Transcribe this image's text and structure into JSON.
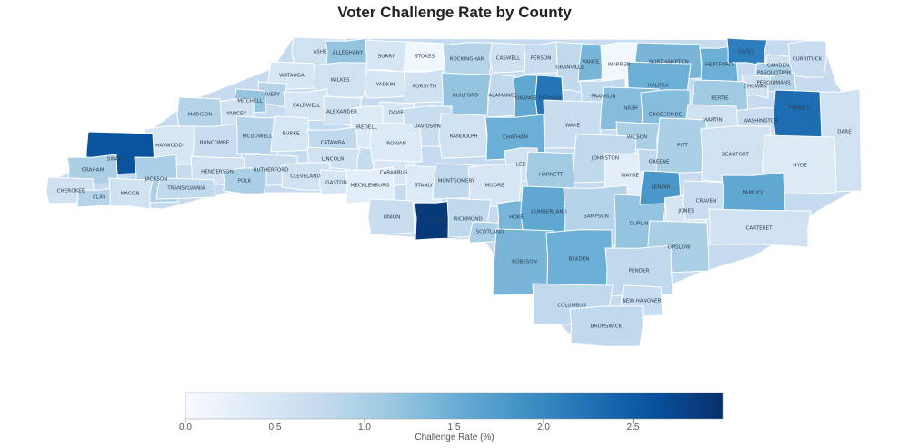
{
  "title": "Voter Challenge Rate by County",
  "colorbar": {
    "title": "Challenge Rate (%)",
    "min": 0,
    "max": 3,
    "ticks": [
      "0.0",
      "0.5",
      "1.0",
      "1.5",
      "2.0",
      "2.5"
    ],
    "tick_values": [
      0,
      0.5,
      1.0,
      1.5,
      2.0,
      2.5
    ],
    "colorscale": [
      "#f7fbff",
      "#deebf7",
      "#c6dbef",
      "#9ecae1",
      "#6baed6",
      "#4292c6",
      "#2171b5",
      "#08519c",
      "#08306b"
    ]
  },
  "counties": [
    {
      "name": "ASHE",
      "value": 0.6
    },
    {
      "name": "ALLEGHANY",
      "value": 1.2
    },
    {
      "name": "SURRY",
      "value": 0.5
    },
    {
      "name": "STOKES",
      "value": 0.1
    },
    {
      "name": "ROCKINGHAM",
      "value": 0.9
    },
    {
      "name": "CASWELL",
      "value": 0.6
    },
    {
      "name": "PERSON",
      "value": 0.7
    },
    {
      "name": "GRANVILLE",
      "value": 0.8
    },
    {
      "name": "VANCE",
      "value": 1.4
    },
    {
      "name": "WARREN",
      "value": 0.1
    },
    {
      "name": "NORTHAMPTON",
      "value": 1.4
    },
    {
      "name": "HERTFORD",
      "value": 1.5
    },
    {
      "name": "GATES",
      "value": 2.1
    },
    {
      "name": "CAMDEN",
      "value": 0.6
    },
    {
      "name": "CURRITUCK",
      "value": 0.7
    },
    {
      "name": "PASQUOTANK",
      "value": 1.0
    },
    {
      "name": "PERQUIMANS",
      "value": 0.9
    },
    {
      "name": "CHOWAN",
      "value": 0.6
    },
    {
      "name": "WATAUGA",
      "value": 0.5
    },
    {
      "name": "WILKES",
      "value": 0.6
    },
    {
      "name": "YADKIN",
      "value": 0.5
    },
    {
      "name": "FORSYTH",
      "value": 0.6
    },
    {
      "name": "GUILFORD",
      "value": 1.2
    },
    {
      "name": "ALAMANCE",
      "value": 0.8
    },
    {
      "name": "ORANGE",
      "value": 1.6
    },
    {
      "name": "DURHAM",
      "value": 2.2
    },
    {
      "name": "FRANKLIN",
      "value": 0.8
    },
    {
      "name": "HALIFAX",
      "value": 1.5
    },
    {
      "name": "BERTIE",
      "value": 1.1
    },
    {
      "name": "WASHINGTON",
      "value": 0.7
    },
    {
      "name": "TYRRELL",
      "value": 2.3
    },
    {
      "name": "DARE",
      "value": 0.6
    },
    {
      "name": "AVERY",
      "value": 0.9
    },
    {
      "name": "MITCHELL",
      "value": 1.2
    },
    {
      "name": "YANCEY",
      "value": 0.6
    },
    {
      "name": "MADISON",
      "value": 0.9
    },
    {
      "name": "CALDWELL",
      "value": 0.5
    },
    {
      "name": "ALEXANDER",
      "value": 0.6
    },
    {
      "name": "DAVIE",
      "value": 0.5
    },
    {
      "name": "DAVIDSON",
      "value": 0.7
    },
    {
      "name": "RANDOLPH",
      "value": 0.6
    },
    {
      "name": "CHATHAM",
      "value": 1.5
    },
    {
      "name": "WAKE",
      "value": 0.7
    },
    {
      "name": "NASH",
      "value": 1.3
    },
    {
      "name": "EDGECOMBE",
      "value": 1.3
    },
    {
      "name": "MARTIN",
      "value": 0.6
    },
    {
      "name": "BUNCOMBE",
      "value": 0.7
    },
    {
      "name": "MCDOWELL",
      "value": 0.9
    },
    {
      "name": "BURKE",
      "value": 0.5
    },
    {
      "name": "IREDELL",
      "value": 0.4
    },
    {
      "name": "ROWAN",
      "value": 0.4
    },
    {
      "name": "CATAWBA",
      "value": 0.8
    },
    {
      "name": "WILSON",
      "value": 1.0
    },
    {
      "name": "JOHNSTON",
      "value": 0.8
    },
    {
      "name": "HAYWOOD",
      "value": 0.5
    },
    {
      "name": "SWAIN",
      "value": 2.6
    },
    {
      "name": "GRAHAM",
      "value": 1.0
    },
    {
      "name": "LINCOLN",
      "value": 0.6
    },
    {
      "name": "CABARRUS",
      "value": 0.5
    },
    {
      "name": "LEE",
      "value": 0.6
    },
    {
      "name": "HARNETT",
      "value": 1.1
    },
    {
      "name": "WAYNE",
      "value": 0.3
    },
    {
      "name": "GREENE",
      "value": 0.8
    },
    {
      "name": "PITT",
      "value": 1.0
    },
    {
      "name": "BEAUFORT",
      "value": 0.6
    },
    {
      "name": "HYDE",
      "value": 0.4
    },
    {
      "name": "JACKSON",
      "value": 1.0
    },
    {
      "name": "HENDERSON",
      "value": 0.6
    },
    {
      "name": "RUTHERFORD",
      "value": 0.7
    },
    {
      "name": "CLEVELAND",
      "value": 0.6
    },
    {
      "name": "GASTON",
      "value": 0.5
    },
    {
      "name": "MECKLENBURG",
      "value": 0.3
    },
    {
      "name": "STANLY",
      "value": 0.4
    },
    {
      "name": "MONTGOMERY",
      "value": 0.8
    },
    {
      "name": "MOORE",
      "value": 0.5
    },
    {
      "name": "CHEROKEE",
      "value": 0.6
    },
    {
      "name": "CLAY",
      "value": 0.9
    },
    {
      "name": "MACON",
      "value": 0.6
    },
    {
      "name": "TRANSYLVANIA",
      "value": 0.8
    },
    {
      "name": "POLK",
      "value": 1.0
    },
    {
      "name": "UNION",
      "value": 0.7
    },
    {
      "name": "ANSON",
      "value": 2.9
    },
    {
      "name": "RICHMOND",
      "value": 0.8
    },
    {
      "name": "SCOTLAND",
      "value": 1.0
    },
    {
      "name": "HOKE",
      "value": 1.4
    },
    {
      "name": "CUMBERLAND",
      "value": 1.6
    },
    {
      "name": "SAMPSON",
      "value": 0.9
    },
    {
      "name": "DUPLIN",
      "value": 1.2
    },
    {
      "name": "LENOIR",
      "value": 1.8
    },
    {
      "name": "JONES",
      "value": 0.5
    },
    {
      "name": "CRAVEN",
      "value": 0.7
    },
    {
      "name": "PAMLICO",
      "value": 1.6
    },
    {
      "name": "CARTERET",
      "value": 0.6
    },
    {
      "name": "ROBESON",
      "value": 1.4
    },
    {
      "name": "BLADEN",
      "value": 1.5
    },
    {
      "name": "ONSLOW",
      "value": 1.0
    },
    {
      "name": "PENDER",
      "value": 0.8
    },
    {
      "name": "COLUMBUS",
      "value": 0.8
    },
    {
      "name": "NEW HANOVER",
      "value": 0.7
    },
    {
      "name": "BRUNSWICK",
      "value": 0.8
    }
  ]
}
